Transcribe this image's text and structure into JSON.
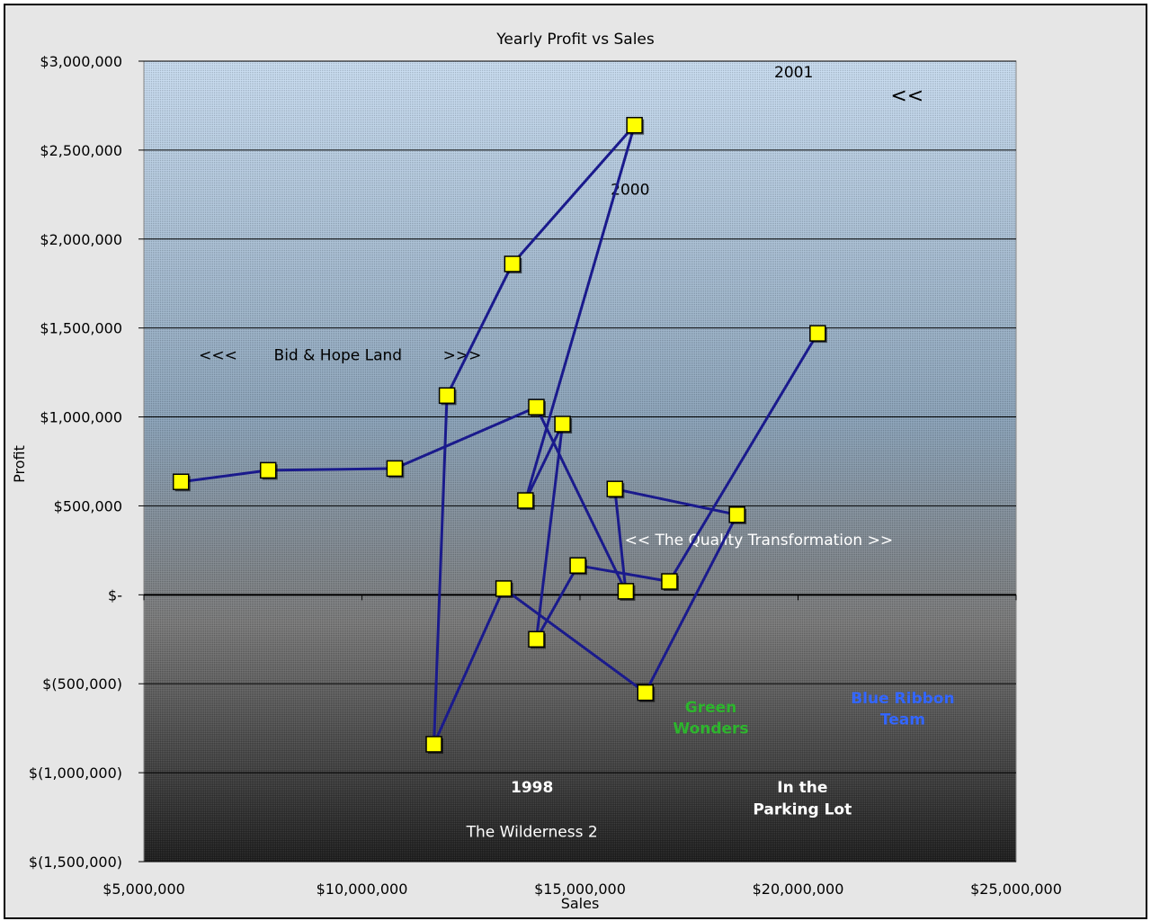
{
  "chart_data": {
    "type": "line",
    "title": "Yearly Profit vs Sales",
    "xlabel": "Sales",
    "ylabel": "Profit",
    "xlim": [
      5000000,
      25000000
    ],
    "ylim": [
      -1500000,
      3000000
    ],
    "x_ticks": [
      {
        "value": 5000000,
        "label": "$5,000,000"
      },
      {
        "value": 10000000,
        "label": "$10,000,000"
      },
      {
        "value": 15000000,
        "label": "$15,000,000"
      },
      {
        "value": 20000000,
        "label": "$20,000,000"
      },
      {
        "value": 25000000,
        "label": "$25,000,000"
      }
    ],
    "y_ticks": [
      {
        "value": 3000000,
        "label": "$3,000,000"
      },
      {
        "value": 2500000,
        "label": "$2,500,000"
      },
      {
        "value": 2000000,
        "label": "$2,000,000"
      },
      {
        "value": 1500000,
        "label": "$1,500,000"
      },
      {
        "value": 1000000,
        "label": "$1,000,000"
      },
      {
        "value": 500000,
        "label": "$500,000"
      },
      {
        "value": 0,
        "label": "$-"
      },
      {
        "value": -500000,
        "label": "$(500,000)"
      },
      {
        "value": -1000000,
        "label": "$(1,000,000)"
      },
      {
        "value": -1500000,
        "label": "$(1,500,000)"
      }
    ],
    "grid": true,
    "legend": "none",
    "series": [
      {
        "points": [
          {
            "x": 5850000,
            "y": 635000
          },
          {
            "x": 7850000,
            "y": 700000
          },
          {
            "x": 10750000,
            "y": 710000
          },
          {
            "x": 14000000,
            "y": 1055000
          },
          {
            "x": 16050000,
            "y": 20000
          },
          {
            "x": 15800000,
            "y": 595000
          },
          {
            "x": 18600000,
            "y": 450000
          },
          {
            "x": 16500000,
            "y": -550000
          },
          {
            "x": 13250000,
            "y": 35000
          },
          {
            "x": 11650000,
            "y": -840000
          },
          {
            "x": 11950000,
            "y": 1120000
          },
          {
            "x": 13450000,
            "y": 1860000
          },
          {
            "x": 16250000,
            "y": 2640000
          },
          {
            "x": 13750000,
            "y": 530000
          },
          {
            "x": 14600000,
            "y": 960000
          },
          {
            "x": 14000000,
            "y": -250000
          },
          {
            "x": 14950000,
            "y": 165000
          },
          {
            "x": 17050000,
            "y": 75000
          },
          {
            "x": 20450000,
            "y": 1470000
          }
        ],
        "segments_from_sixth_point": [
          [
            5,
            6
          ],
          [
            6,
            7
          ],
          [
            7,
            8
          ]
        ]
      }
    ],
    "annotations": [
      {
        "text": "2001",
        "x": 19900000,
        "y": 2910000,
        "color": "#000000",
        "bold": false
      },
      {
        "text": "<<",
        "x": 22500000,
        "y": 2770000,
        "color": "#000000",
        "bold": false
      },
      {
        "text": "2000",
        "x": 16150000,
        "y": 2250000,
        "color": "#000000",
        "bold": false
      },
      {
        "text": "<<<",
        "x": 6700000,
        "y": 1320000,
        "color": "#000000",
        "bold": false
      },
      {
        "text": "Bid & Hope Land",
        "x": 9450000,
        "y": 1320000,
        "color": "#000000",
        "bold": false
      },
      {
        "text": ">>>",
        "x": 12300000,
        "y": 1320000,
        "color": "#000000",
        "bold": false
      },
      {
        "text": "<< The Quality Transformation >>",
        "x": 19100000,
        "y": 280000,
        "color": "#ffffff",
        "bold": false
      },
      {
        "text": "Green",
        "x": 18000000,
        "y": -660000,
        "color": "#2db52d",
        "bold": true
      },
      {
        "text": "Wonders",
        "x": 18000000,
        "y": -780000,
        "color": "#2db52d",
        "bold": true
      },
      {
        "text": "Blue Ribbon",
        "x": 22400000,
        "y": -610000,
        "color": "#3366ff",
        "bold": true
      },
      {
        "text": "Team",
        "x": 22400000,
        "y": -730000,
        "color": "#3366ff",
        "bold": true
      },
      {
        "text": "1998",
        "x": 13900000,
        "y": -1110000,
        "color": "#ffffff",
        "bold": true
      },
      {
        "text": "In the",
        "x": 20100000,
        "y": -1110000,
        "color": "#ffffff",
        "bold": true
      },
      {
        "text": "Parking Lot",
        "x": 20100000,
        "y": -1235000,
        "color": "#ffffff",
        "bold": true
      },
      {
        "text": "The Wilderness 2",
        "x": 13900000,
        "y": -1360000,
        "color": "#ffffff",
        "bold": false
      }
    ],
    "colors": {
      "line": "#1a1a8c",
      "marker_fill": "#ffff00",
      "marker_stroke": "#000000",
      "grid": "#000000",
      "plot_top": "#c8dcf0",
      "plot_bottom": "#1e1e1e"
    }
  }
}
